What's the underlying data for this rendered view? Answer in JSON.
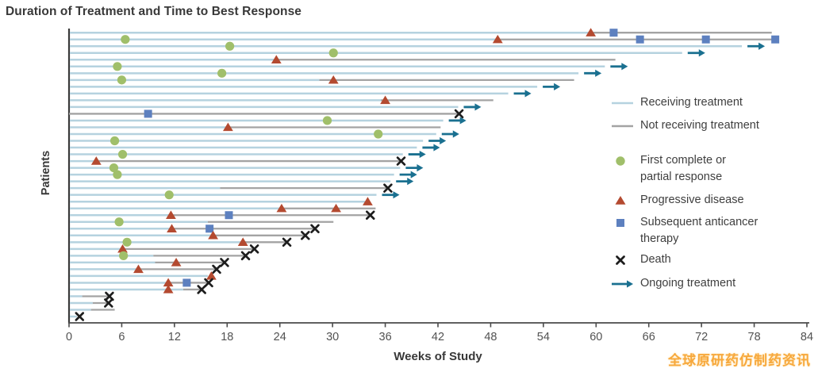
{
  "header": {
    "title": "Duration of Treatment and Time to Best Response"
  },
  "watermark": {
    "text": "全球原研药仿制药资讯",
    "color": "#f7a83c"
  },
  "chart_data": {
    "type": "swimmer-bar",
    "title": "Duration of Treatment and Time to Best Response",
    "xlabel": "Weeks of Study",
    "ylabel": "Patients",
    "xlim": [
      0,
      84
    ],
    "x_ticks": [
      0,
      6,
      12,
      18,
      24,
      30,
      36,
      42,
      48,
      54,
      60,
      66,
      72,
      78,
      84
    ],
    "grid": false,
    "legend_position": "right",
    "colors": {
      "treatment": "#b5d2df",
      "off_treatment": "#a3a3a3",
      "response": "#a0bf6a",
      "progression": "#b44a30",
      "therapy": "#5d80bf",
      "death": "#1d1d1d",
      "ongoing": "#1a7090",
      "axis": "#4a4a4a",
      "tick_label": "#525252"
    },
    "legend": [
      {
        "symbol": "line-treatment",
        "label": [
          "Receiving treatment"
        ]
      },
      {
        "symbol": "line-off",
        "label": [
          "Not receiving treatment"
        ]
      },
      {
        "symbol": "circle",
        "label": [
          "First complete or",
          "partial response"
        ]
      },
      {
        "symbol": "triangle",
        "label": [
          "Progressive disease"
        ]
      },
      {
        "symbol": "square",
        "label": [
          "Subsequent anticancer",
          "therapy"
        ]
      },
      {
        "symbol": "x",
        "label": [
          "Death"
        ]
      },
      {
        "symbol": "arrow",
        "label": [
          "Ongoing treatment"
        ]
      }
    ],
    "patients": [
      {
        "treatment_end": 59.4,
        "off_end": 80.0,
        "ongoing": false,
        "markers": [
          {
            "type": "progression",
            "week": 59.4
          },
          {
            "type": "therapy",
            "week": 62.0
          }
        ]
      },
      {
        "treatment_end": 48.8,
        "off_end": 80.4,
        "ongoing": false,
        "markers": [
          {
            "type": "response",
            "week": 6.4
          },
          {
            "type": "progression",
            "week": 48.8
          },
          {
            "type": "therapy",
            "week": 65.0
          },
          {
            "type": "therapy",
            "week": 72.5
          },
          {
            "type": "therapy",
            "week": 80.4
          }
        ]
      },
      {
        "treatment_end": 76.6,
        "off_end": null,
        "ongoing": true,
        "markers": [
          {
            "type": "response",
            "week": 18.3
          }
        ]
      },
      {
        "treatment_end": 69.8,
        "off_end": null,
        "ongoing": true,
        "markers": [
          {
            "type": "response",
            "week": 30.1
          }
        ]
      },
      {
        "treatment_end": 23.6,
        "off_end": 62.2,
        "ongoing": false,
        "markers": [
          {
            "type": "progression",
            "week": 23.6
          }
        ]
      },
      {
        "treatment_end": 61.0,
        "off_end": null,
        "ongoing": true,
        "markers": [
          {
            "type": "response",
            "week": 5.5
          }
        ]
      },
      {
        "treatment_end": 58.0,
        "off_end": null,
        "ongoing": true,
        "markers": [
          {
            "type": "response",
            "week": 17.4
          }
        ]
      },
      {
        "treatment_end": 28.5,
        "off_end": 57.5,
        "ongoing": false,
        "markers": [
          {
            "type": "response",
            "week": 6.0
          },
          {
            "type": "progression",
            "week": 30.1
          }
        ]
      },
      {
        "treatment_end": 53.3,
        "off_end": null,
        "ongoing": true,
        "markers": []
      },
      {
        "treatment_end": 50.0,
        "off_end": null,
        "ongoing": true,
        "markers": []
      },
      {
        "treatment_end": 35.5,
        "off_end": 48.3,
        "ongoing": false,
        "markers": [
          {
            "type": "progression",
            "week": 36.0
          }
        ]
      },
      {
        "treatment_end": 44.3,
        "off_end": null,
        "ongoing": true,
        "markers": []
      },
      {
        "treatment_end": 0,
        "off_end": 44.4,
        "ongoing": false,
        "markers": [
          {
            "type": "therapy",
            "week": 9.0
          },
          {
            "type": "death",
            "week": 44.4
          }
        ]
      },
      {
        "treatment_end": 42.6,
        "off_end": null,
        "ongoing": true,
        "markers": [
          {
            "type": "response",
            "week": 29.4
          }
        ]
      },
      {
        "treatment_end": 18.1,
        "off_end": 42.3,
        "ongoing": false,
        "markers": [
          {
            "type": "progression",
            "week": 18.1
          }
        ]
      },
      {
        "treatment_end": 41.8,
        "off_end": null,
        "ongoing": true,
        "markers": [
          {
            "type": "response",
            "week": 35.2
          }
        ]
      },
      {
        "treatment_end": 40.3,
        "off_end": null,
        "ongoing": true,
        "markers": [
          {
            "type": "response",
            "week": 5.2
          }
        ]
      },
      {
        "treatment_end": 39.6,
        "off_end": null,
        "ongoing": true,
        "markers": []
      },
      {
        "treatment_end": 38.0,
        "off_end": null,
        "ongoing": true,
        "markers": [
          {
            "type": "response",
            "week": 6.1
          }
        ]
      },
      {
        "treatment_end": 3.1,
        "off_end": 37.8,
        "ongoing": false,
        "markers": [
          {
            "type": "progression",
            "week": 3.1
          },
          {
            "type": "death",
            "week": 37.8
          }
        ]
      },
      {
        "treatment_end": 37.7,
        "off_end": null,
        "ongoing": true,
        "markers": [
          {
            "type": "response",
            "week": 5.1
          }
        ]
      },
      {
        "treatment_end": 37.0,
        "off_end": null,
        "ongoing": true,
        "markers": [
          {
            "type": "response",
            "week": 5.5
          }
        ]
      },
      {
        "treatment_end": 36.6,
        "off_end": null,
        "ongoing": true,
        "markers": []
      },
      {
        "treatment_end": 17.2,
        "off_end": 36.3,
        "ongoing": false,
        "markers": [
          {
            "type": "death",
            "week": 36.3
          }
        ]
      },
      {
        "treatment_end": 35.0,
        "off_end": null,
        "ongoing": true,
        "markers": [
          {
            "type": "response",
            "week": 11.4
          }
        ]
      },
      {
        "treatment_end": 33.7,
        "off_end": null,
        "ongoing": false,
        "markers": [
          {
            "type": "progression",
            "week": 34.0
          }
        ]
      },
      {
        "treatment_end": 24.2,
        "off_end": 34.9,
        "ongoing": false,
        "markers": [
          {
            "type": "progression",
            "week": 24.2
          },
          {
            "type": "progression",
            "week": 30.4
          }
        ]
      },
      {
        "treatment_end": 11.6,
        "off_end": 34.3,
        "ongoing": false,
        "markers": [
          {
            "type": "progression",
            "week": 11.6
          },
          {
            "type": "therapy",
            "week": 18.2
          },
          {
            "type": "death",
            "week": 34.3
          }
        ]
      },
      {
        "treatment_end": 15.8,
        "off_end": 30.1,
        "ongoing": false,
        "markers": [
          {
            "type": "response",
            "week": 5.7
          }
        ]
      },
      {
        "treatment_end": 11.7,
        "off_end": 28.0,
        "ongoing": false,
        "markers": [
          {
            "type": "progression",
            "week": 11.7
          },
          {
            "type": "therapy",
            "week": 16.0
          },
          {
            "type": "death",
            "week": 28.0
          }
        ]
      },
      {
        "treatment_end": 16.4,
        "off_end": 26.9,
        "ongoing": false,
        "markers": [
          {
            "type": "progression",
            "week": 16.4
          },
          {
            "type": "death",
            "week": 26.9
          }
        ]
      },
      {
        "treatment_end": 19.8,
        "off_end": 24.8,
        "ongoing": false,
        "markers": [
          {
            "type": "response",
            "week": 6.6
          },
          {
            "type": "progression",
            "week": 19.8
          },
          {
            "type": "death",
            "week": 24.8
          }
        ]
      },
      {
        "treatment_end": 6.1,
        "off_end": 21.1,
        "ongoing": false,
        "markers": [
          {
            "type": "progression",
            "week": 6.1
          },
          {
            "type": "death",
            "week": 21.1
          }
        ]
      },
      {
        "treatment_end": 9.6,
        "off_end": 20.1,
        "ongoing": false,
        "markers": [
          {
            "type": "response",
            "week": 6.2
          },
          {
            "type": "death",
            "week": 20.1
          }
        ]
      },
      {
        "treatment_end": 9.8,
        "off_end": 17.7,
        "ongoing": false,
        "markers": [
          {
            "type": "progression",
            "week": 12.2
          },
          {
            "type": "death",
            "week": 17.7
          }
        ]
      },
      {
        "treatment_end": 7.9,
        "off_end": 16.8,
        "ongoing": false,
        "markers": [
          {
            "type": "progression",
            "week": 7.9
          },
          {
            "type": "death",
            "week": 16.8
          }
        ]
      },
      {
        "treatment_end": 15.8,
        "off_end": null,
        "ongoing": false,
        "markers": [
          {
            "type": "progression",
            "week": 16.2
          }
        ]
      },
      {
        "treatment_end": 11.3,
        "off_end": 15.9,
        "ongoing": false,
        "markers": [
          {
            "type": "progression",
            "week": 11.3
          },
          {
            "type": "therapy",
            "week": 13.4
          },
          {
            "type": "death",
            "week": 15.9
          }
        ]
      },
      {
        "treatment_end": 13.0,
        "off_end": 15.1,
        "ongoing": false,
        "markers": [
          {
            "type": "progression",
            "week": 11.3
          },
          {
            "type": "death",
            "week": 15.1
          }
        ]
      },
      {
        "treatment_end": 1.5,
        "off_end": 4.6,
        "ongoing": false,
        "markers": [
          {
            "type": "death",
            "week": 4.6
          }
        ]
      },
      {
        "treatment_end": 2.7,
        "off_end": 4.5,
        "ongoing": false,
        "markers": [
          {
            "type": "death",
            "week": 4.5
          }
        ]
      },
      {
        "treatment_end": 2.5,
        "off_end": 5.2,
        "ongoing": false,
        "markers": []
      },
      {
        "treatment_end": 0.9,
        "off_end": null,
        "ongoing": false,
        "markers": [
          {
            "type": "death",
            "week": 1.2
          }
        ]
      }
    ]
  }
}
